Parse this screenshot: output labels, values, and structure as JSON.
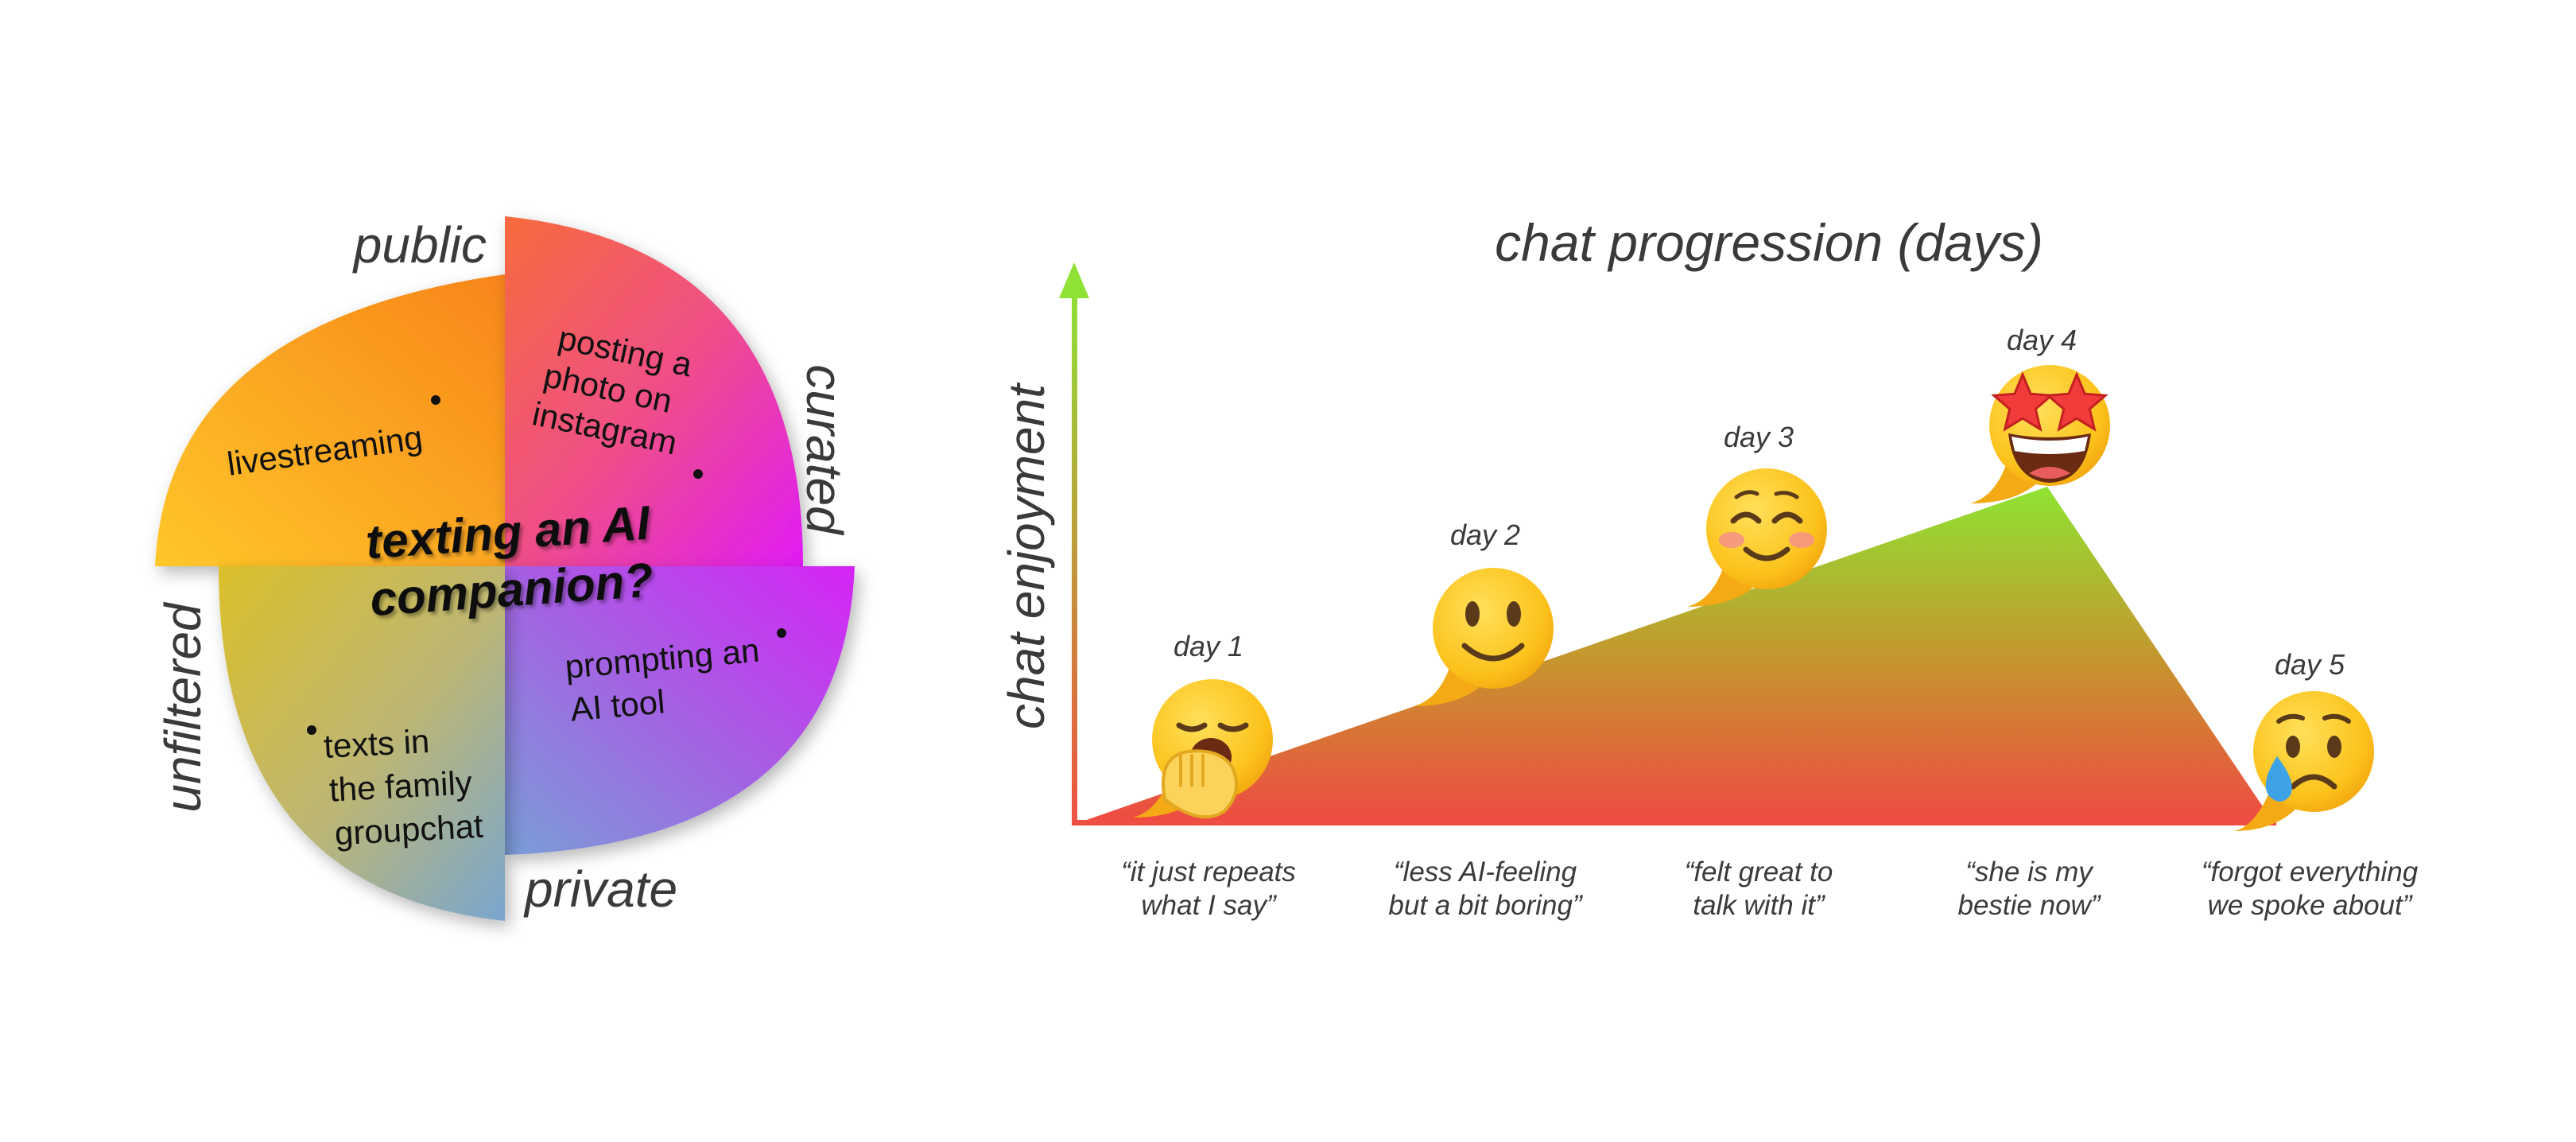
{
  "quadrant": {
    "center_label_line1": "texting an AI",
    "center_label_line2": "companion?",
    "axis_top": "public",
    "axis_right": "curated",
    "axis_bottom": "private",
    "axis_left": "unfiltered",
    "items": {
      "livestreaming": "livestreaming",
      "instagram": [
        "posting a",
        "photo on",
        "instagram"
      ],
      "ai_tool": [
        "prompting an",
        "AI tool"
      ],
      "family": [
        "texts in",
        "the family",
        "groupchat"
      ]
    }
  },
  "timeline": {
    "title": "chat progression (days)",
    "ylabel": "chat enjoyment",
    "days": [
      {
        "label": "day 1",
        "emoji": "yawning-face",
        "quote": [
          "“it just repeats",
          "what I say”"
        ]
      },
      {
        "label": "day 2",
        "emoji": "slightly-smiling-face",
        "quote": [
          "“less AI-feeling",
          "but a bit boring”"
        ]
      },
      {
        "label": "day 3",
        "emoji": "smiling-face-blushing",
        "quote": [
          "“felt great to",
          "talk with it”"
        ]
      },
      {
        "label": "day 4",
        "emoji": "star-struck-face",
        "quote": [
          "“she is my",
          "bestie now”"
        ]
      },
      {
        "label": "day 5",
        "emoji": "sad-tear-face",
        "quote": [
          "“forgot everything",
          "we spoke about”"
        ]
      }
    ],
    "colors": {
      "top": "#8ee236",
      "bottom": "#ee4c41"
    }
  }
}
